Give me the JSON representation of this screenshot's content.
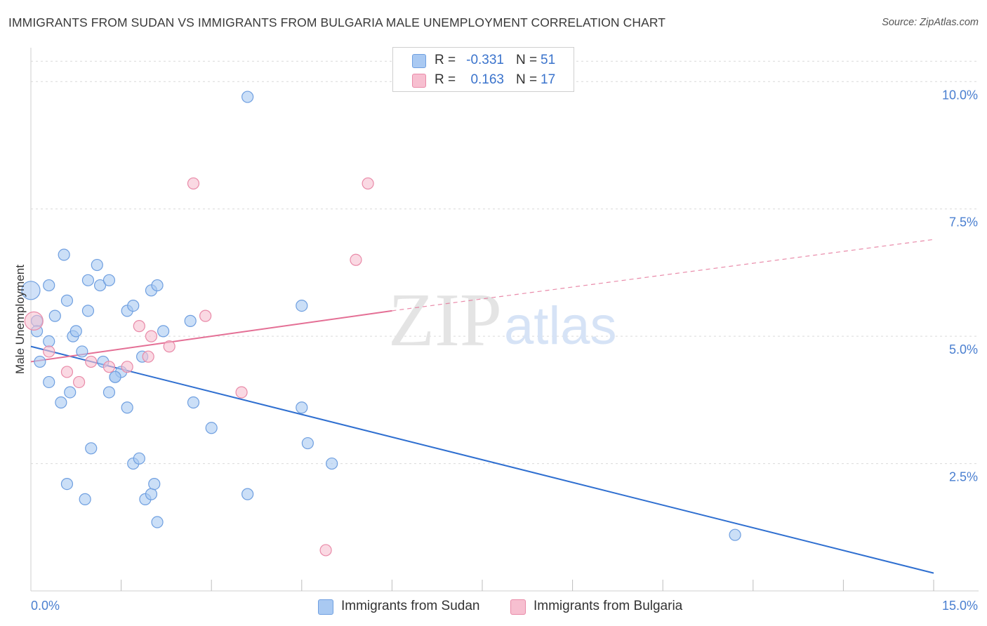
{
  "title": "IMMIGRANTS FROM SUDAN VS IMMIGRANTS FROM BULGARIA MALE UNEMPLOYMENT CORRELATION CHART",
  "source": "Source: ZipAtlas.com",
  "watermark": {
    "zip": "ZIP",
    "atlas": "atlas"
  },
  "legend_top": [
    {
      "r_label": "R =",
      "r_value": "-0.331",
      "n_label": "N =",
      "n_value": "51",
      "color": "#a9c9f2",
      "border": "#6f9fe0"
    },
    {
      "r_label": "R =",
      "r_value": "0.163",
      "n_label": "N =",
      "n_value": "17",
      "color": "#f7bfd0",
      "border": "#e98aa8"
    }
  ],
  "legend_bottom": [
    {
      "label": "Immigrants from Sudan",
      "color": "#a9c9f2",
      "border": "#6f9fe0"
    },
    {
      "label": "Immigrants from Bulgaria",
      "color": "#f7bfd0",
      "border": "#e98aa8"
    }
  ],
  "chart_data": {
    "type": "scatter",
    "title": "IMMIGRANTS FROM SUDAN VS IMMIGRANTS FROM BULGARIA MALE UNEMPLOYMENT CORRELATION CHART",
    "xlabel": "",
    "ylabel": "Male Unemployment",
    "xlim": [
      0,
      15
    ],
    "ylim": [
      0,
      10.5
    ],
    "x_tick_labels": [
      {
        "value": 0,
        "label": "0.0%"
      },
      {
        "value": 15,
        "label": "15.0%"
      }
    ],
    "x_minor_ticks": [
      1.5,
      3.0,
      4.5,
      6.0,
      7.5,
      9.0,
      10.5,
      12.0,
      13.5
    ],
    "y_ticks": [
      {
        "value": 2.5,
        "label": "2.5%"
      },
      {
        "value": 5.0,
        "label": "5.0%"
      },
      {
        "value": 7.5,
        "label": "7.5%"
      },
      {
        "value": 10.0,
        "label": "10.0%"
      }
    ],
    "grid": true,
    "series": [
      {
        "name": "Immigrants from Sudan",
        "color": "#a9c9f2",
        "stroke": "#6f9fe0",
        "trend_color": "#2f6fd0",
        "points": [
          [
            0.0,
            5.9
          ],
          [
            0.1,
            5.3
          ],
          [
            0.1,
            5.1
          ],
          [
            0.15,
            4.5
          ],
          [
            0.3,
            6.0
          ],
          [
            0.3,
            4.9
          ],
          [
            0.3,
            4.1
          ],
          [
            0.4,
            5.4
          ],
          [
            0.5,
            3.7
          ],
          [
            0.55,
            6.6
          ],
          [
            0.6,
            5.7
          ],
          [
            0.65,
            3.9
          ],
          [
            0.7,
            5.0
          ],
          [
            0.75,
            5.1
          ],
          [
            0.85,
            4.7
          ],
          [
            0.95,
            5.5
          ],
          [
            0.95,
            6.1
          ],
          [
            1.0,
            2.8
          ],
          [
            1.1,
            6.4
          ],
          [
            1.15,
            6.0
          ],
          [
            1.3,
            6.1
          ],
          [
            1.3,
            3.9
          ],
          [
            1.4,
            4.2
          ],
          [
            1.5,
            4.3
          ],
          [
            1.6,
            3.6
          ],
          [
            1.6,
            5.5
          ],
          [
            1.7,
            2.5
          ],
          [
            1.7,
            5.6
          ],
          [
            1.8,
            2.6
          ],
          [
            1.85,
            4.6
          ],
          [
            1.9,
            1.8
          ],
          [
            2.0,
            5.9
          ],
          [
            2.0,
            1.9
          ],
          [
            2.05,
            2.1
          ],
          [
            2.1,
            6.0
          ],
          [
            2.1,
            1.35
          ],
          [
            2.2,
            5.1
          ],
          [
            2.65,
            5.3
          ],
          [
            2.7,
            3.7
          ],
          [
            3.0,
            3.2
          ],
          [
            3.6,
            1.9
          ],
          [
            3.6,
            9.7
          ],
          [
            4.5,
            5.6
          ],
          [
            4.5,
            3.6
          ],
          [
            4.6,
            2.9
          ],
          [
            5.0,
            2.5
          ],
          [
            11.7,
            1.1
          ],
          [
            0.6,
            2.1
          ],
          [
            0.9,
            1.8
          ],
          [
            1.2,
            4.5
          ],
          [
            1.4,
            4.2
          ]
        ],
        "trend": {
          "x0": 0,
          "y0": 4.8,
          "x1": 15,
          "y1": 0.35
        }
      },
      {
        "name": "Immigrants from Bulgaria",
        "color": "#f7bfd0",
        "stroke": "#e98aa8",
        "trend_color": "#e46f95",
        "points": [
          [
            0.05,
            5.3
          ],
          [
            0.3,
            4.7
          ],
          [
            0.6,
            4.3
          ],
          [
            0.8,
            4.1
          ],
          [
            1.0,
            4.5
          ],
          [
            1.3,
            4.4
          ],
          [
            1.6,
            4.4
          ],
          [
            1.8,
            5.2
          ],
          [
            1.95,
            4.6
          ],
          [
            2.0,
            5.0
          ],
          [
            2.3,
            4.8
          ],
          [
            2.7,
            8.0
          ],
          [
            2.9,
            5.4
          ],
          [
            3.5,
            3.9
          ],
          [
            4.9,
            0.8
          ],
          [
            5.4,
            6.5
          ],
          [
            5.6,
            8.0
          ]
        ],
        "trend": {
          "x0": 0,
          "y0": 4.5,
          "x1": 6.0,
          "y1": 5.5
        },
        "trend_extension": {
          "x0": 6.0,
          "y0": 5.5,
          "x1": 15,
          "y1": 6.9
        }
      }
    ]
  }
}
